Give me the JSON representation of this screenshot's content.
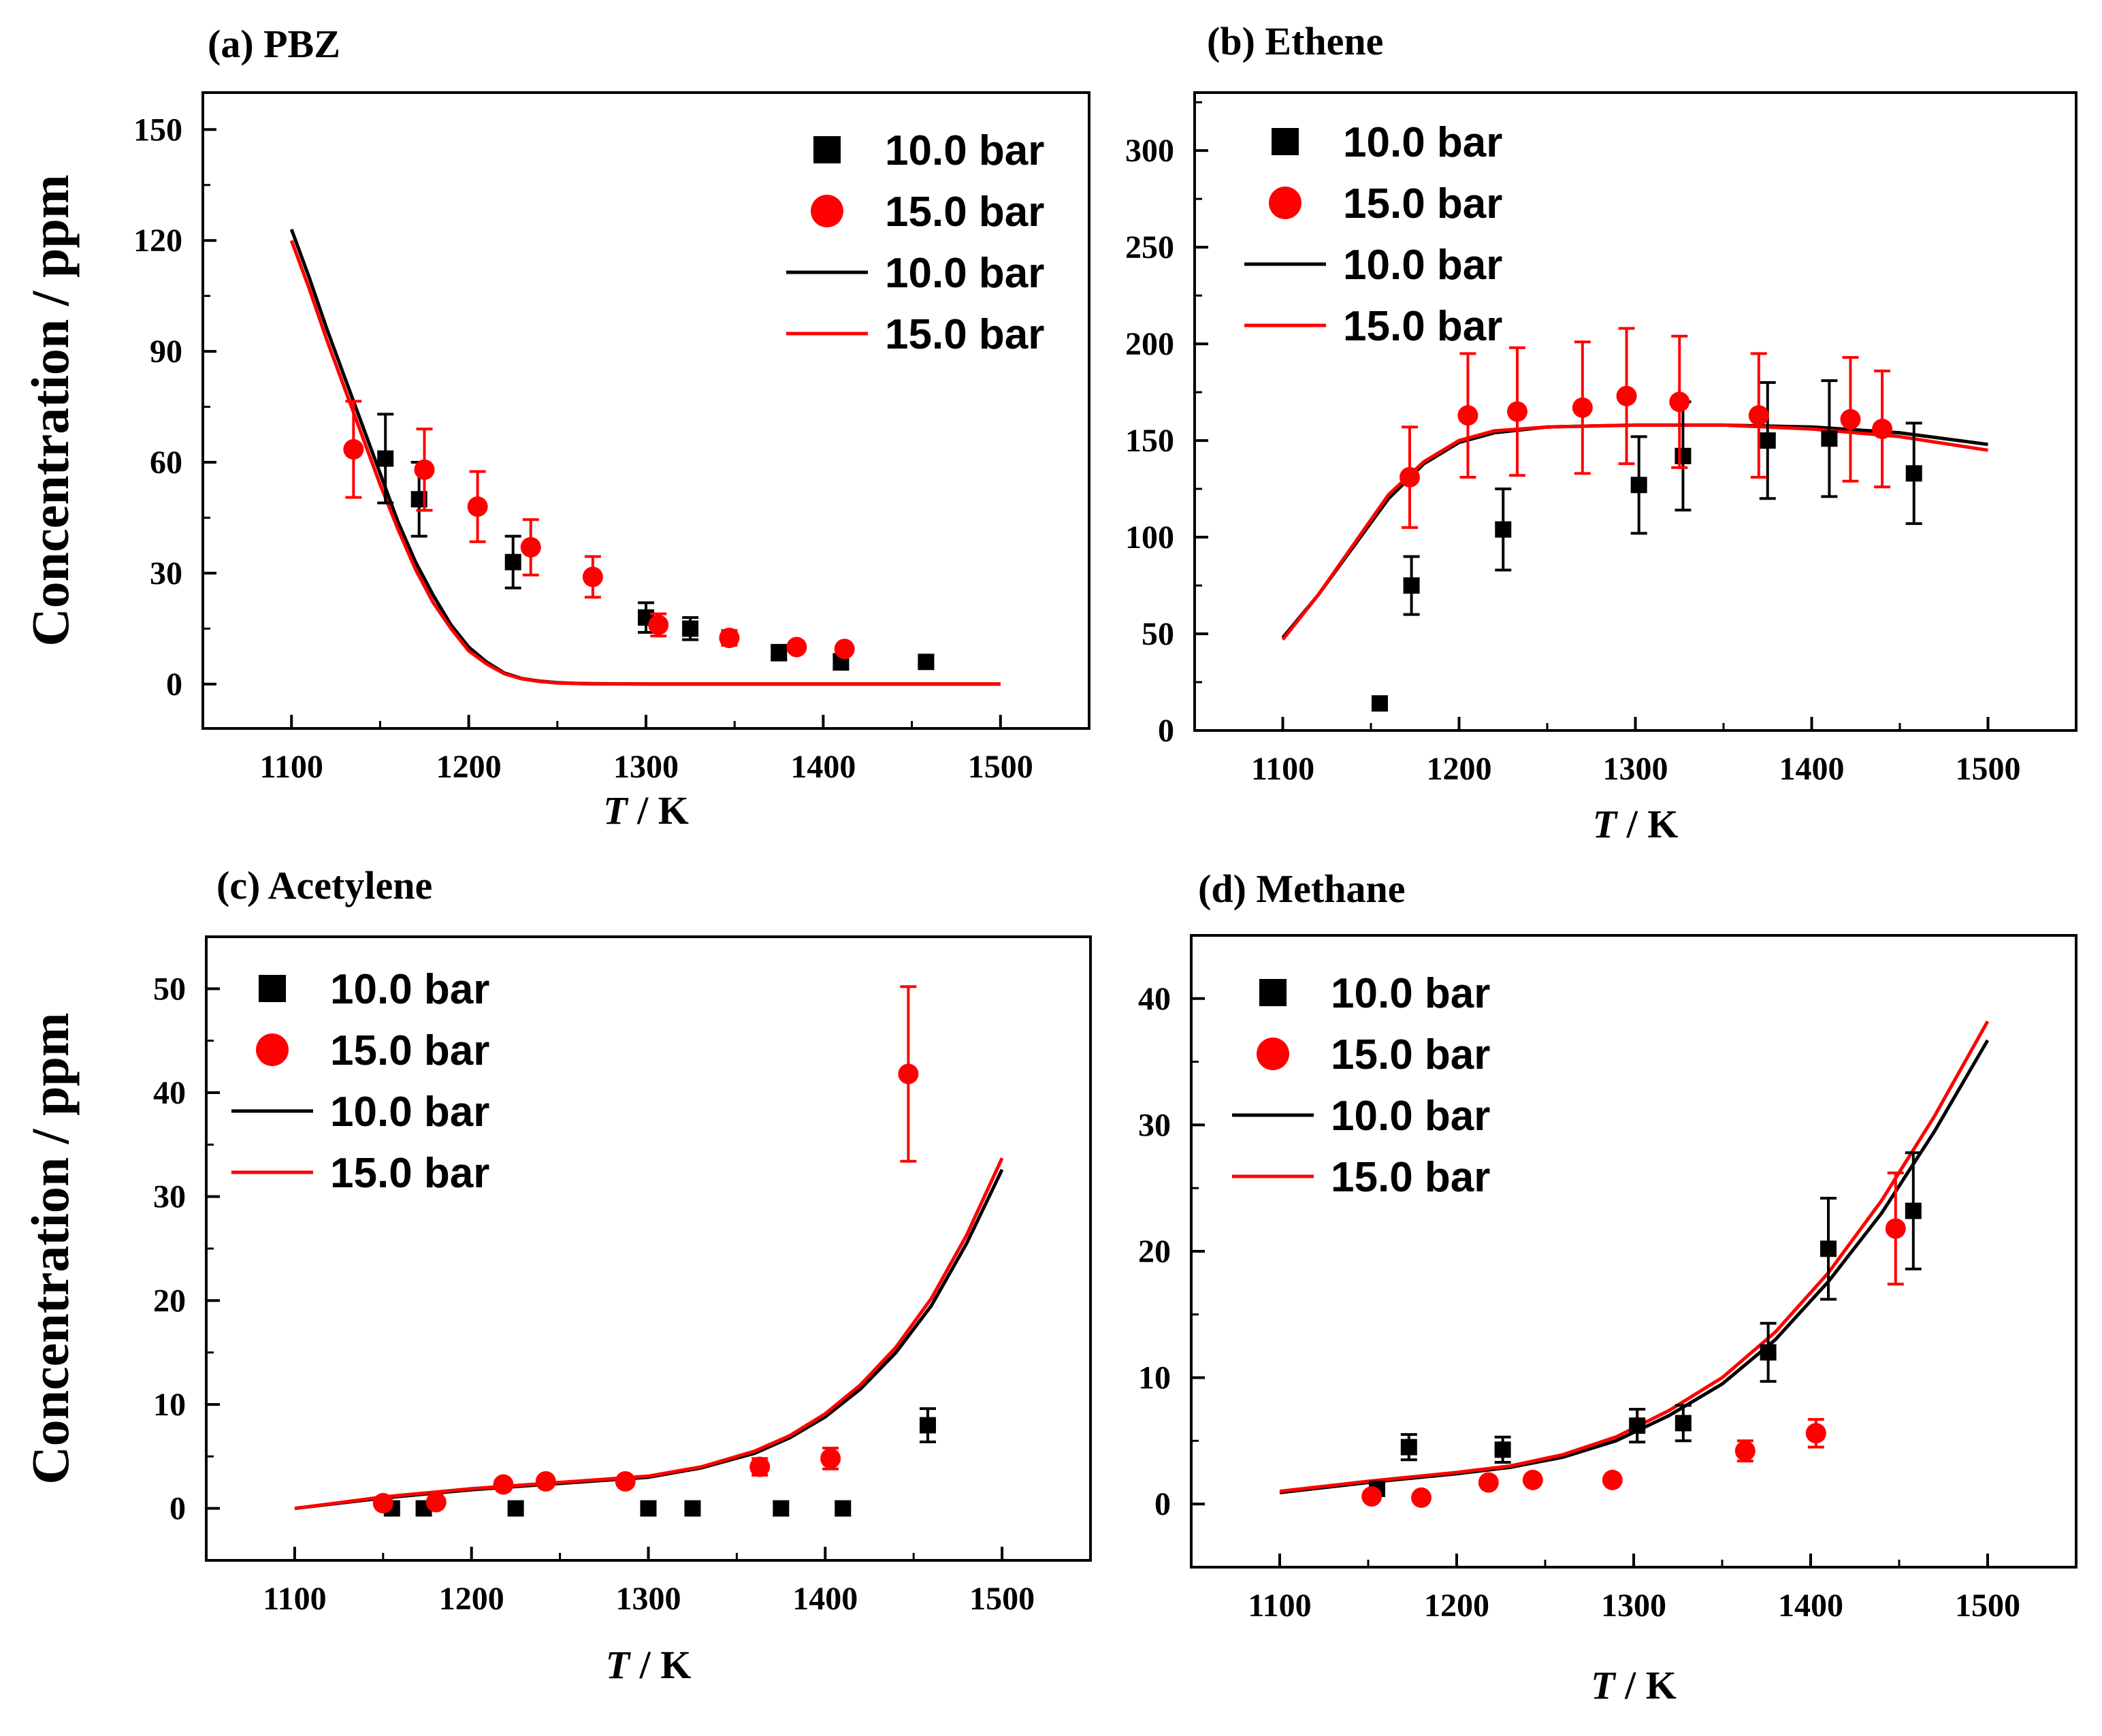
{
  "figure": {
    "ylabel": "Concentration / ppm"
  },
  "legend": {
    "items": [
      "10.0 bar",
      "15.0 bar",
      "10.0 bar",
      "15.0 bar"
    ]
  },
  "colors": {
    "series_10bar": "#000000",
    "series_15bar": "#ff0000"
  },
  "chart_data": [
    {
      "type": "scatter",
      "title": "(a) PBZ",
      "xlabel_italic": "T",
      "xlabel_rest": " / K",
      "ylabel": "Concentration / ppm",
      "xlim": [
        1050,
        1550
      ],
      "ylim": [
        -12,
        160
      ],
      "xticks": [
        1100,
        1200,
        1300,
        1400,
        1500
      ],
      "yticks": [
        0,
        30,
        60,
        90,
        120,
        150
      ],
      "legend": [
        "10.0 bar",
        "15.0 bar",
        "10.0 bar",
        "15.0 bar"
      ],
      "series": [
        {
          "name": "10.0 bar",
          "kind": "points",
          "marker": "square",
          "color": "#000000",
          "x": [
            1153,
            1172,
            1225,
            1300,
            1325,
            1375,
            1410,
            1458
          ],
          "y": [
            61,
            50,
            33,
            18,
            15,
            8.5,
            6,
            6
          ],
          "err": [
            12,
            10,
            7,
            4,
            3,
            2,
            2,
            1
          ]
        },
        {
          "name": "15.0 bar",
          "kind": "points",
          "marker": "circle",
          "color": "#ff0000",
          "x": [
            1135,
            1175,
            1205,
            1235,
            1270,
            1307,
            1347,
            1385,
            1412
          ],
          "y": [
            63.5,
            58,
            48,
            37,
            29,
            16,
            12.5,
            10,
            9.5
          ],
          "err": [
            13,
            11,
            9.5,
            7.5,
            5.5,
            3,
            2,
            1,
            1
          ]
        },
        {
          "name": "10.0 bar",
          "kind": "line",
          "color": "#000000",
          "x": [
            1100,
            1110,
            1120,
            1130,
            1140,
            1150,
            1160,
            1170,
            1180,
            1190,
            1200,
            1210,
            1220,
            1230,
            1240,
            1250,
            1260,
            1270,
            1300,
            1400,
            1500
          ],
          "y": [
            123,
            110,
            96,
            83,
            70,
            57,
            44,
            33,
            24,
            16,
            10,
            6,
            3,
            1.5,
            0.8,
            0.4,
            0.2,
            0.1,
            0,
            0,
            0
          ]
        },
        {
          "name": "15.0 bar",
          "kind": "line",
          "color": "#ff0000",
          "x": [
            1100,
            1110,
            1120,
            1130,
            1140,
            1150,
            1160,
            1170,
            1180,
            1190,
            1200,
            1210,
            1220,
            1230,
            1240,
            1250,
            1260,
            1270,
            1300,
            1400,
            1500
          ],
          "y": [
            120,
            107,
            93,
            80,
            67,
            54,
            42,
            31,
            22,
            15,
            9,
            5.5,
            2.8,
            1.4,
            0.7,
            0.3,
            0.15,
            0.05,
            0,
            0,
            0
          ]
        }
      ]
    },
    {
      "type": "scatter",
      "title": "(b) Ethene",
      "xlabel_italic": "T",
      "xlabel_rest": " / K",
      "ylabel": "",
      "xlim": [
        1050,
        1550
      ],
      "ylim": [
        0,
        330
      ],
      "xticks": [
        1100,
        1200,
        1300,
        1400,
        1500
      ],
      "yticks": [
        0,
        50,
        100,
        150,
        200,
        250,
        300
      ],
      "legend": [
        "10.0 bar",
        "15.0 bar",
        "10.0 bar",
        "15.0 bar"
      ],
      "series": [
        {
          "name": "10.0 bar",
          "kind": "points",
          "marker": "square",
          "color": "#000000",
          "x": [
            1155,
            1173,
            1225,
            1302,
            1327,
            1375,
            1410,
            1458
          ],
          "y": [
            14,
            75,
            104,
            127,
            142,
            150,
            151,
            133
          ],
          "err": [
            0,
            15,
            21,
            25,
            28,
            30,
            30,
            26
          ]
        },
        {
          "name": "15.0 bar",
          "kind": "points",
          "marker": "circle",
          "color": "#ff0000",
          "x": [
            1172,
            1205,
            1233,
            1270,
            1295,
            1325,
            1370,
            1422,
            1440
          ],
          "y": [
            131,
            163,
            165,
            167,
            173,
            170,
            163,
            161,
            156
          ],
          "err": [
            26,
            32,
            33,
            34,
            35,
            34,
            32,
            32,
            30
          ]
        },
        {
          "name": "10.0 bar",
          "kind": "line",
          "color": "#000000",
          "x": [
            1100,
            1120,
            1140,
            1160,
            1180,
            1200,
            1220,
            1250,
            1300,
            1350,
            1400,
            1450,
            1500
          ],
          "y": [
            48,
            70,
            95,
            120,
            138,
            149,
            154,
            157,
            158,
            158,
            157,
            154,
            148
          ]
        },
        {
          "name": "15.0 bar",
          "kind": "line",
          "color": "#ff0000",
          "x": [
            1100,
            1120,
            1140,
            1160,
            1180,
            1200,
            1220,
            1250,
            1300,
            1350,
            1400,
            1450,
            1500
          ],
          "y": [
            47,
            70,
            96,
            122,
            139,
            150,
            155,
            157,
            158,
            158,
            156,
            152,
            145
          ]
        }
      ]
    },
    {
      "type": "scatter",
      "title": "(c) Acetylene",
      "xlabel_italic": "T",
      "xlabel_rest": " / K",
      "ylabel": "Concentration / ppm",
      "xlim": [
        1050,
        1550
      ],
      "ylim": [
        -5,
        55
      ],
      "xticks": [
        1100,
        1200,
        1300,
        1400,
        1500
      ],
      "yticks": [
        0,
        10,
        20,
        30,
        40,
        50
      ],
      "legend": [
        "10.0 bar",
        "15.0 bar",
        "10.0 bar",
        "15.0 bar"
      ],
      "series": [
        {
          "name": "10.0 bar",
          "kind": "points",
          "marker": "square",
          "color": "#000000",
          "x": [
            1155,
            1173,
            1225,
            1300,
            1325,
            1375,
            1410,
            1458
          ],
          "y": [
            0,
            0,
            0,
            0,
            0,
            0,
            0,
            8
          ],
          "err": [
            0,
            0,
            0,
            0,
            0,
            0,
            0,
            1.6
          ]
        },
        {
          "name": "15.0 bar",
          "kind": "points",
          "marker": "circle",
          "color": "#ff0000",
          "x": [
            1150,
            1180,
            1218,
            1242,
            1287,
            1363,
            1403,
            1447
          ],
          "y": [
            0.5,
            0.6,
            2.3,
            2.6,
            2.6,
            4.0,
            4.8,
            41.8
          ],
          "err": [
            0,
            0,
            0,
            0,
            0,
            0.8,
            1.0,
            8.4
          ]
        },
        {
          "name": "10.0 bar",
          "kind": "line",
          "color": "#000000",
          "x": [
            1100,
            1150,
            1200,
            1250,
            1300,
            1330,
            1360,
            1380,
            1400,
            1420,
            1440,
            1460,
            1480,
            1500
          ],
          "y": [
            0,
            1,
            1.8,
            2.4,
            3.0,
            3.9,
            5.3,
            6.8,
            8.8,
            11.5,
            15,
            19.5,
            25.5,
            32.6
          ]
        },
        {
          "name": "15.0 bar",
          "kind": "line",
          "color": "#ff0000",
          "x": [
            1100,
            1150,
            1200,
            1250,
            1300,
            1330,
            1360,
            1380,
            1400,
            1420,
            1440,
            1460,
            1480,
            1500
          ],
          "y": [
            0,
            1.1,
            1.9,
            2.5,
            3.1,
            4.0,
            5.5,
            7.0,
            9.1,
            11.9,
            15.5,
            20.2,
            26.3,
            33.7
          ]
        }
      ]
    },
    {
      "type": "scatter",
      "title": "(d) Methane",
      "xlabel_italic": "T",
      "xlabel_rest": " / K",
      "ylabel": "",
      "xlim": [
        1050,
        1550
      ],
      "ylim": [
        -5,
        45
      ],
      "xticks": [
        1100,
        1200,
        1300,
        1400,
        1500
      ],
      "yticks": [
        0,
        10,
        20,
        30,
        40
      ],
      "legend": [
        "10.0 bar",
        "15.0 bar",
        "10.0 bar",
        "15.0 bar"
      ],
      "series": [
        {
          "name": "10.0 bar",
          "kind": "points",
          "marker": "square",
          "color": "#000000",
          "x": [
            1155,
            1173,
            1226,
            1302,
            1328,
            1376,
            1410,
            1458
          ],
          "y": [
            1.2,
            4.5,
            4.3,
            6.2,
            6.4,
            12,
            20.2,
            23.2
          ],
          "err": [
            0.5,
            1.0,
            1.0,
            1.3,
            1.4,
            2.3,
            4.0,
            4.6
          ]
        },
        {
          "name": "15.0 bar",
          "kind": "points",
          "marker": "circle",
          "color": "#ff0000",
          "x": [
            1152,
            1180,
            1218,
            1243,
            1288,
            1363,
            1403,
            1448
          ],
          "y": [
            0.6,
            0.5,
            1.7,
            1.9,
            1.9,
            4.2,
            5.6,
            21.8
          ],
          "err": [
            0,
            0,
            0,
            0,
            0,
            0.8,
            1.1,
            4.4
          ]
        },
        {
          "name": "10.0 bar",
          "kind": "line",
          "color": "#000000",
          "x": [
            1100,
            1150,
            1200,
            1230,
            1260,
            1290,
            1320,
            1350,
            1380,
            1410,
            1440,
            1470,
            1500
          ],
          "y": [
            0.9,
            1.7,
            2.4,
            2.9,
            3.7,
            5.0,
            7.0,
            9.5,
            13.0,
            17.6,
            23.0,
            29.5,
            36.7
          ]
        },
        {
          "name": "15.0 bar",
          "kind": "line",
          "color": "#ff0000",
          "x": [
            1100,
            1150,
            1200,
            1230,
            1260,
            1290,
            1320,
            1350,
            1380,
            1410,
            1440,
            1470,
            1500
          ],
          "y": [
            1.0,
            1.8,
            2.5,
            3.0,
            3.9,
            5.3,
            7.4,
            10.0,
            13.6,
            18.3,
            24.0,
            30.7,
            38.2
          ]
        }
      ]
    }
  ]
}
